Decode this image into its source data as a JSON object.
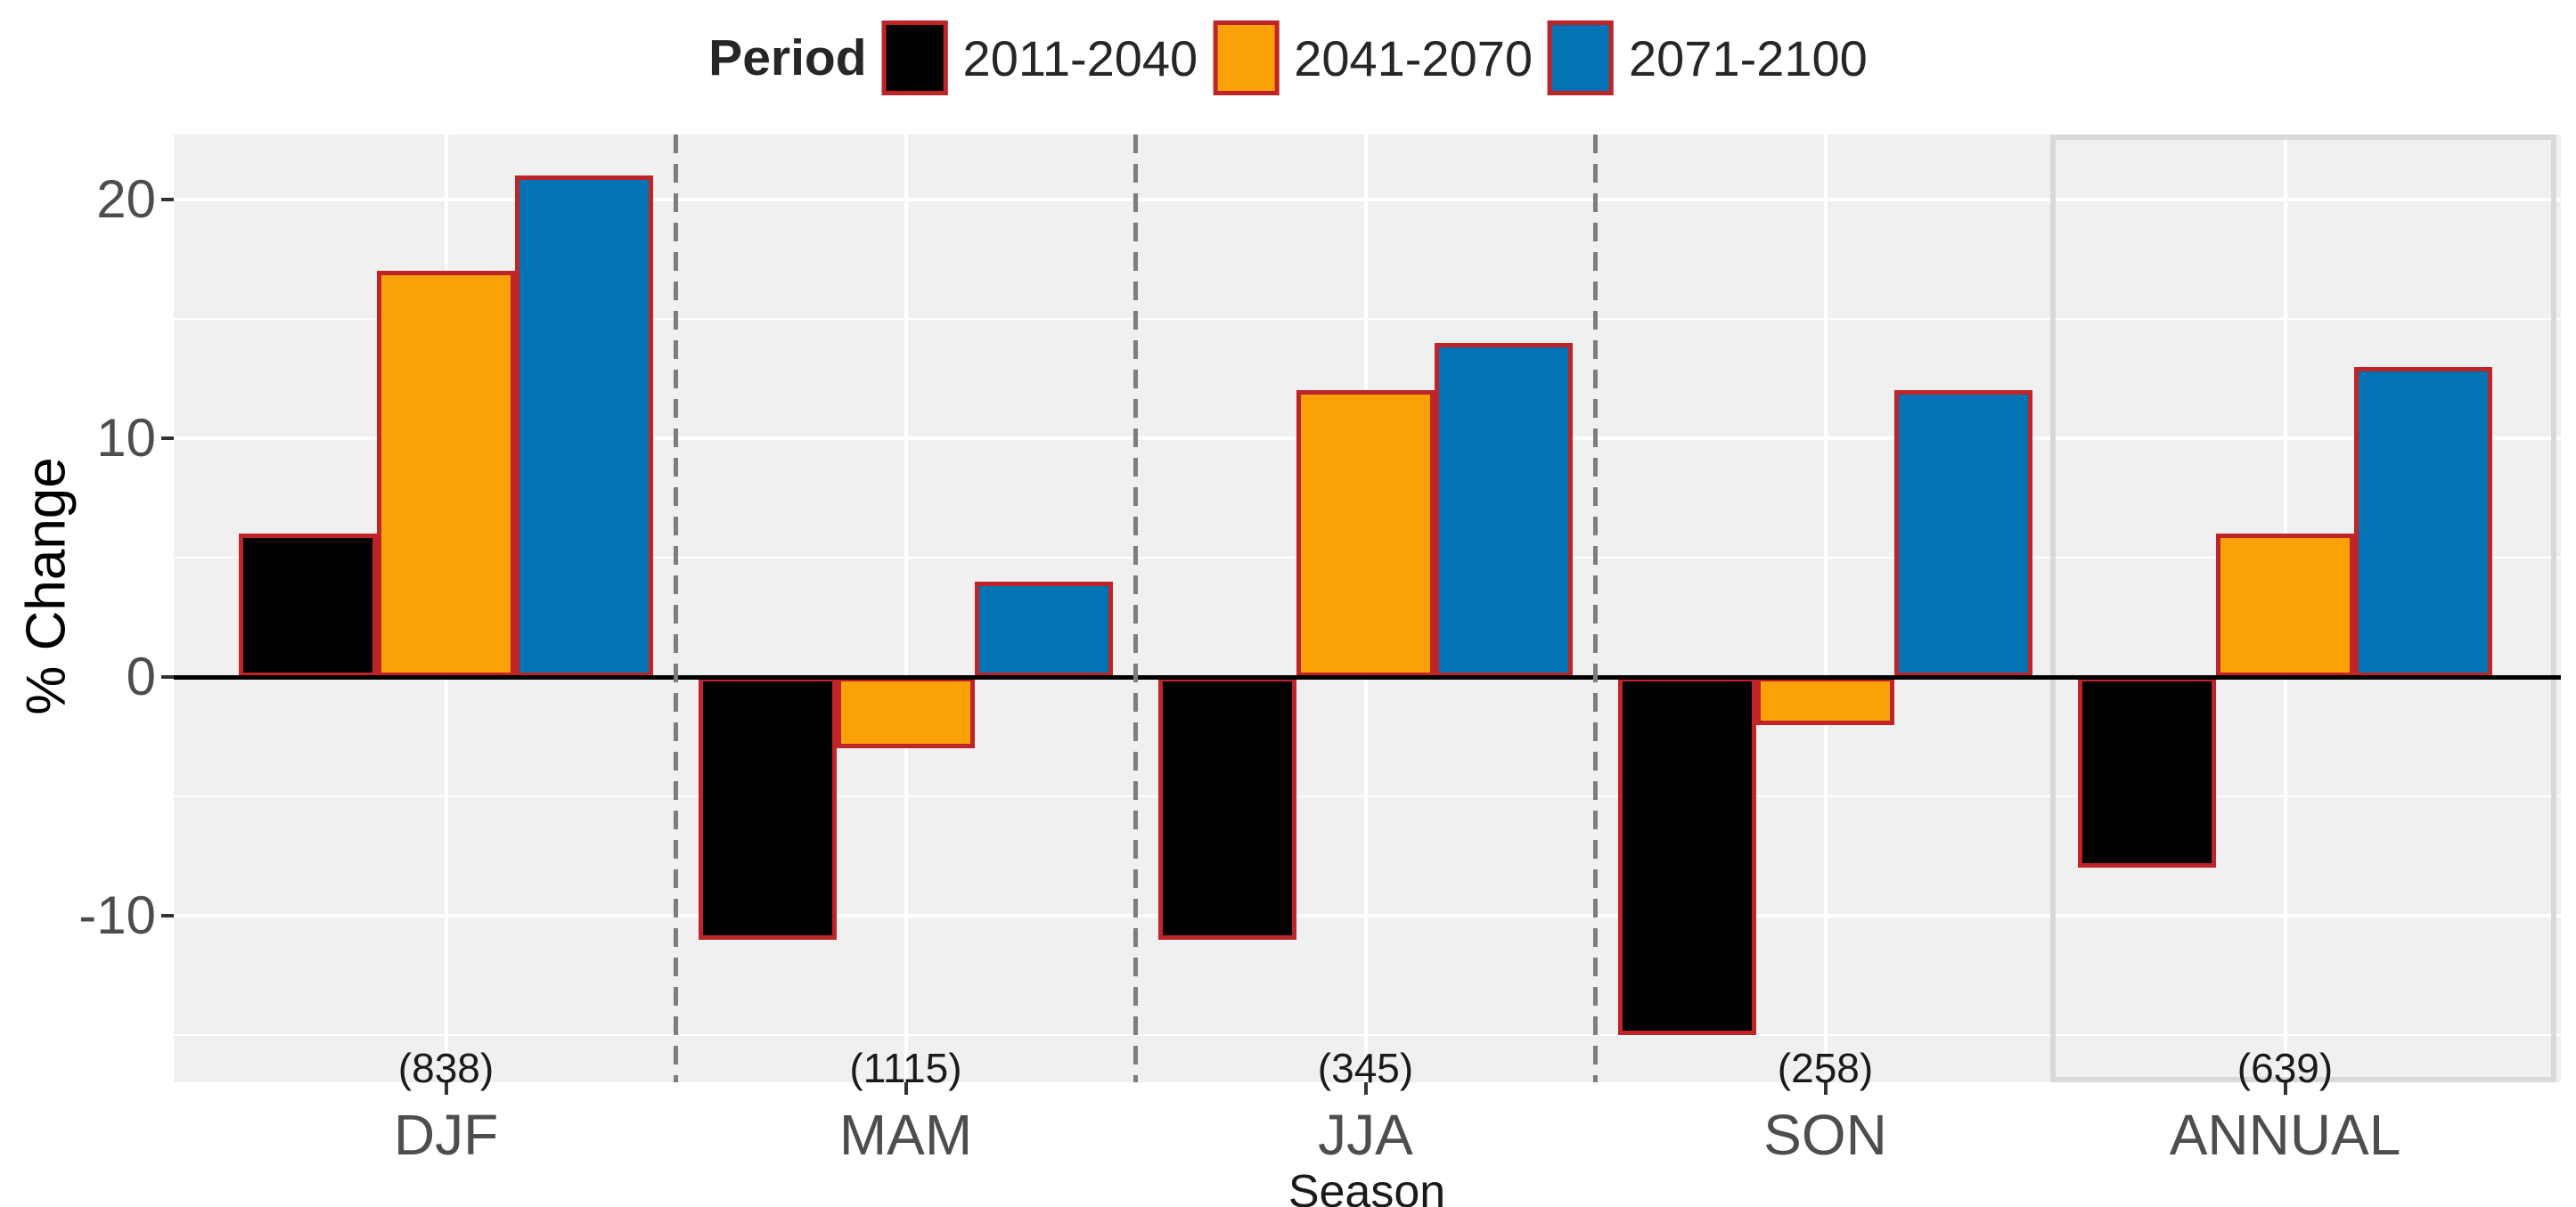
{
  "chart_data": {
    "type": "bar",
    "title": "",
    "xlabel": "Season",
    "ylabel": "% Change",
    "categories": [
      "DJF",
      "MAM",
      "JJA",
      "SON",
      "ANNUAL"
    ],
    "category_counts": [
      "(838)",
      "(1115)",
      "(345)",
      "(258)",
      "(639)"
    ],
    "series": [
      {
        "name": "2011-2040",
        "color": "#000000",
        "values": [
          6,
          -11,
          -11,
          -15,
          -8
        ]
      },
      {
        "name": "2041-2070",
        "color": "#F9A106",
        "values": [
          17,
          -3,
          12,
          -2,
          6
        ]
      },
      {
        "name": "2071-2100",
        "color": "#0473B4",
        "values": [
          21,
          4,
          14,
          12,
          13
        ]
      }
    ],
    "legend": {
      "title": "Period",
      "position": "top"
    },
    "yticks": [
      20,
      10,
      0,
      -10
    ],
    "yticks_minor": [
      15,
      5,
      -5,
      -15
    ],
    "ylim": [
      -16.9,
      22.7
    ],
    "grid": "white major+minor on gray panel, vertical gridline at each category center",
    "zero_line": true,
    "bar_outline_color": "#BE2428",
    "separators_between": [
      [
        "DJF",
        "MAM"
      ],
      [
        "MAM",
        "JJA"
      ],
      [
        "JJA",
        "SON"
      ]
    ],
    "highlight_box_category": "ANNUAL"
  },
  "colors": {
    "panel_background": "#F0F0F0",
    "gridline": "#FFFFFF",
    "zero_line": "#000000",
    "separator": "#7D7D7D",
    "highlight_box_border": "#D9D9D9",
    "bar_outline": "#BE2428",
    "axis_tick_text": "#4D4D4D",
    "text": "#1A1A1A"
  }
}
